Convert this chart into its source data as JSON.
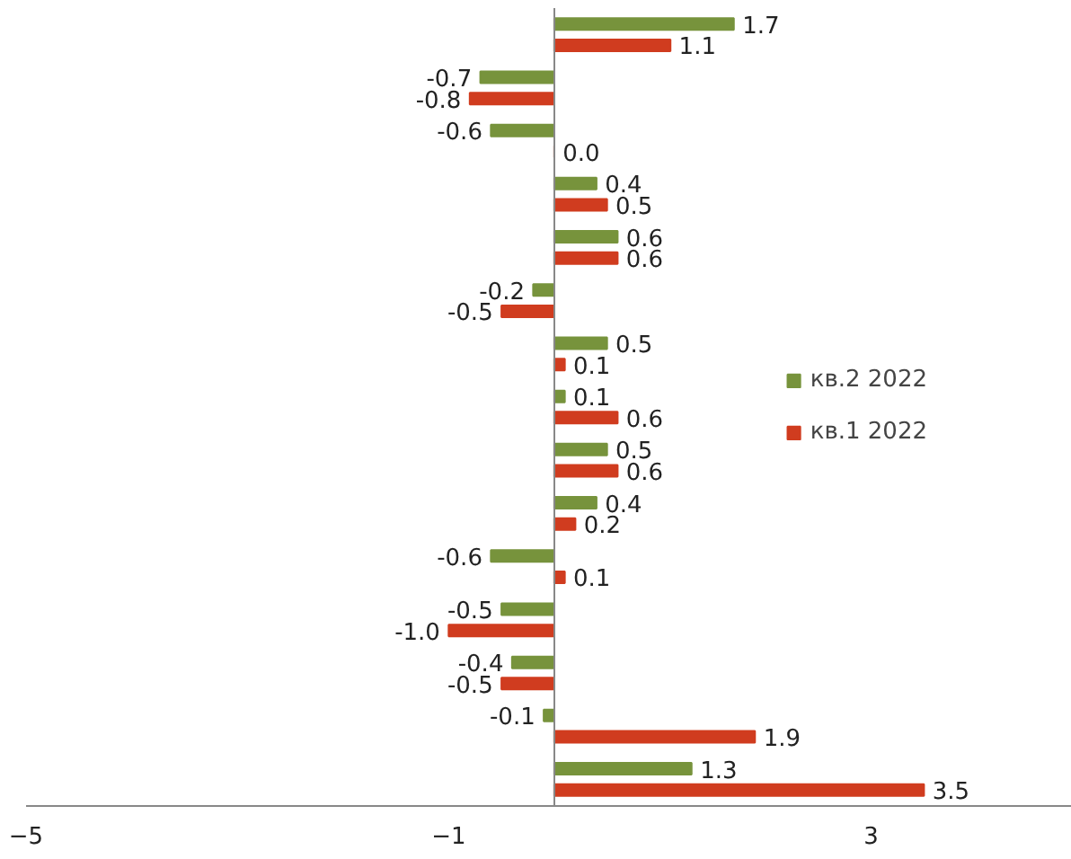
{
  "chart_data": {
    "type": "bar",
    "orientation": "horizontal",
    "categories": [
      null,
      null,
      null,
      null,
      null,
      null,
      null,
      null,
      null,
      null,
      null,
      null,
      null,
      null,
      null
    ],
    "series": [
      {
        "name": "кв.2 2022",
        "color": "#77933c",
        "values": [
          1.7,
          -0.7,
          -0.6,
          0.4,
          0.6,
          -0.2,
          0.5,
          0.1,
          0.5,
          0.4,
          -0.6,
          -0.5,
          -0.4,
          -0.1,
          1.3
        ],
        "value_labels": [
          "1.7",
          "-0.7",
          "-0.6",
          "0.4",
          "0.6",
          "-0.2",
          "0.5",
          "0.1",
          "0.5",
          "0.4",
          "-0.6",
          "-0.5",
          "-0.4",
          "-0.1",
          "1.3"
        ]
      },
      {
        "name": "кв.1 2022",
        "color": "#d03c1f",
        "values": [
          1.1,
          -0.8,
          0.0,
          0.5,
          0.6,
          -0.5,
          0.1,
          0.6,
          0.6,
          0.2,
          0.1,
          -1.0,
          -0.5,
          1.9,
          3.5
        ],
        "value_labels": [
          "1.1",
          "-0.8",
          "0.0",
          "0.5",
          "0.6",
          "-0.5",
          "0.1",
          "0.6",
          "0.6",
          "0.2",
          "0.1",
          "-1.0",
          "-0.5",
          "1.9",
          "3.5"
        ]
      }
    ],
    "xlim": [
      -5,
      4.9
    ],
    "xticks": [
      -5,
      -1,
      3
    ],
    "grid": false,
    "legend": "right"
  }
}
